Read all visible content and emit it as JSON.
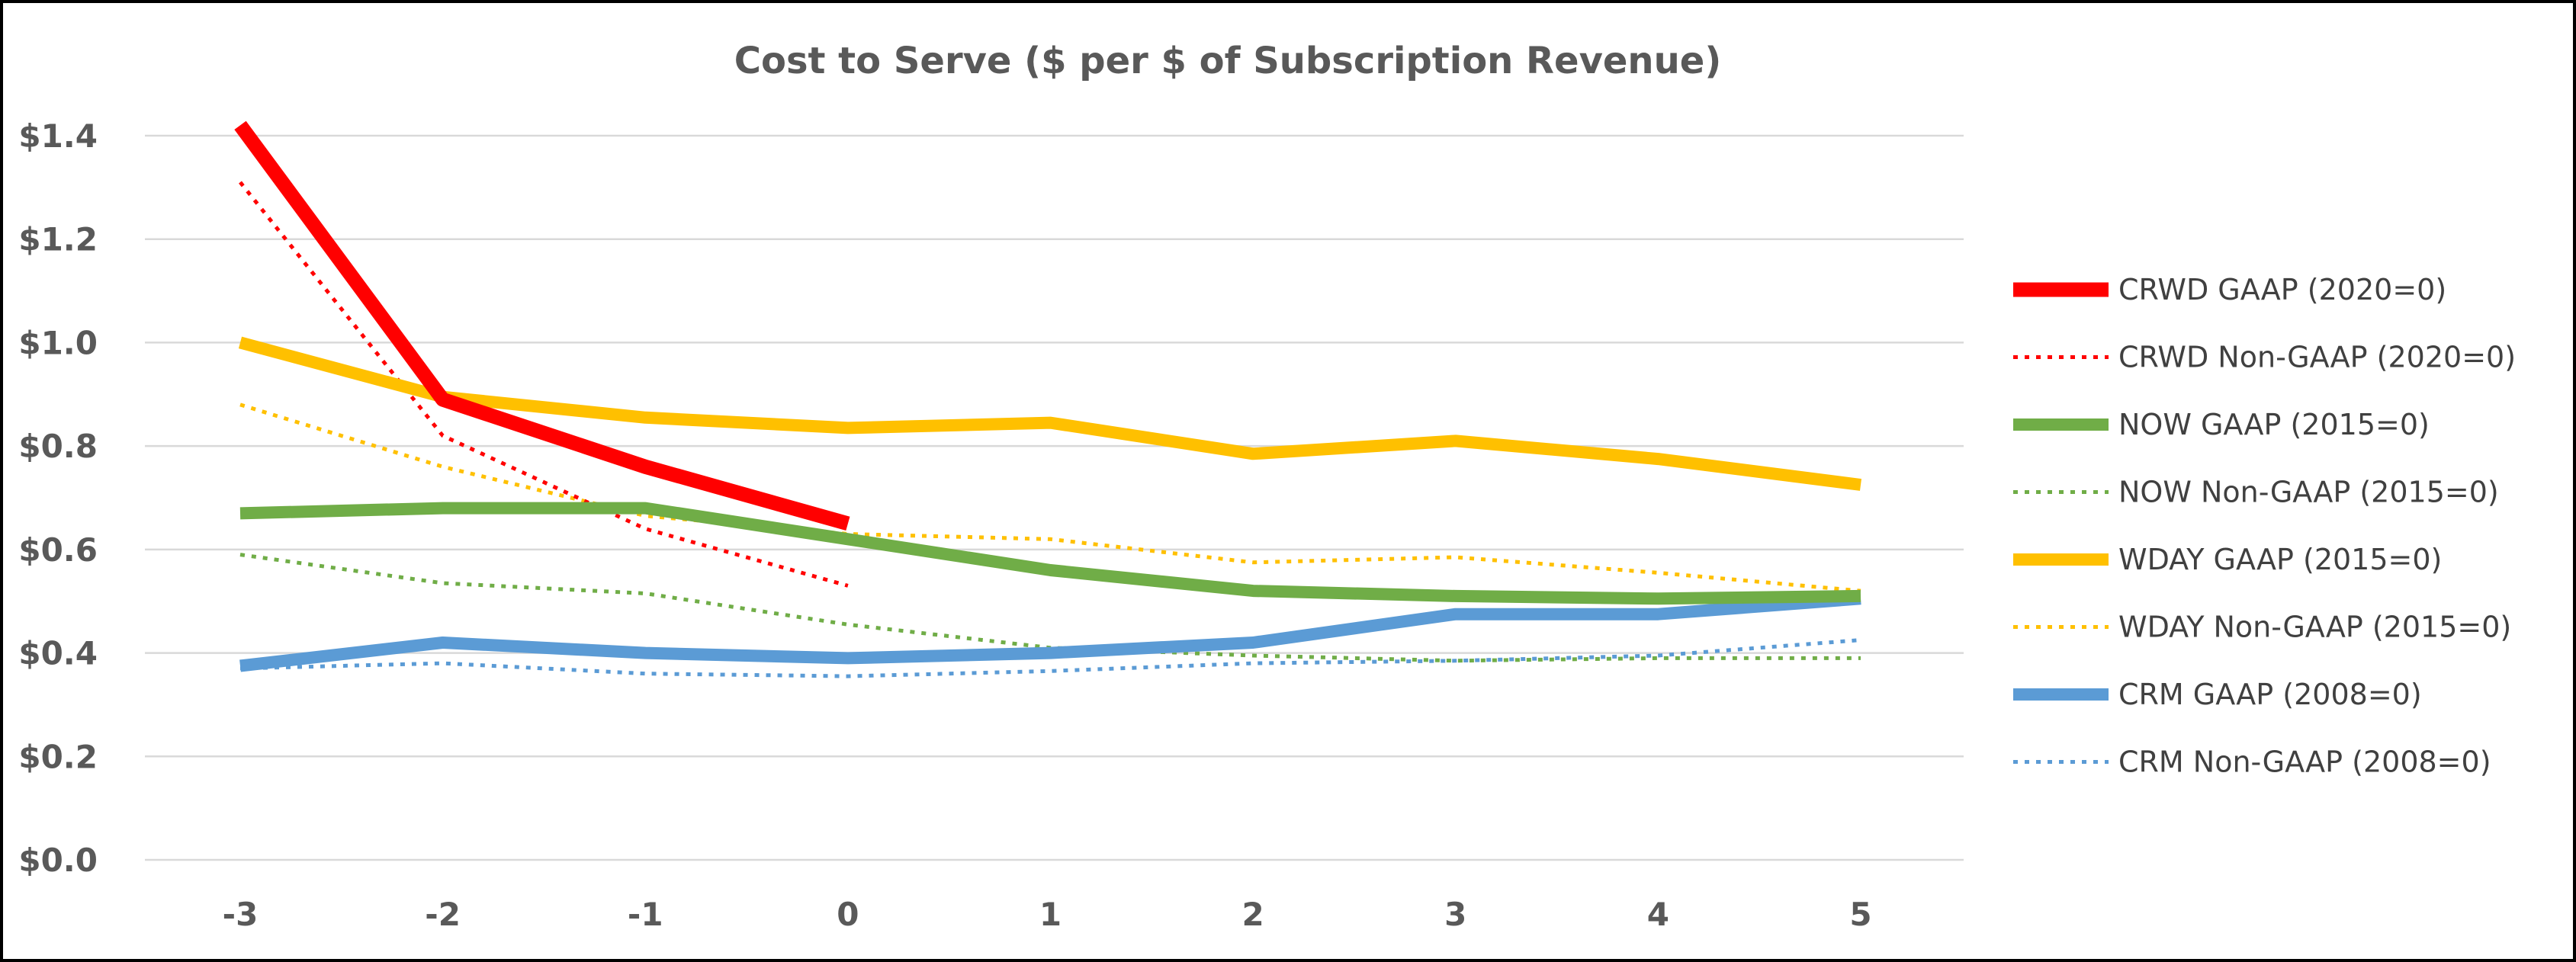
{
  "chart_data": {
    "type": "line",
    "title": "Cost to Serve ($ per $ of Subscription Revenue)",
    "xlabel": "",
    "ylabel": "",
    "x": [
      -3,
      -2,
      -1,
      0,
      1,
      2,
      3,
      4,
      5
    ],
    "x_tick_labels": [
      "-3",
      "-2",
      "-1",
      "0",
      "1",
      "2",
      "3",
      "4",
      "5"
    ],
    "ylim": [
      0,
      1.4
    ],
    "y_ticks": [
      0,
      0.2,
      0.4,
      0.6,
      0.8,
      1.0,
      1.2,
      1.4
    ],
    "y_tick_labels": [
      "$0.0",
      "$0.2",
      "$0.4",
      "$0.6",
      "$0.8",
      "$1.0",
      "$1.2",
      "$1.4"
    ],
    "grid": true,
    "legend_position": "right",
    "series": [
      {
        "name": "CRWD GAAP (2020=0)",
        "color": "#ff0000",
        "style": "solid",
        "weight": "heavy",
        "values": [
          1.42,
          0.89,
          0.76,
          0.65,
          null,
          null,
          null,
          null,
          null
        ]
      },
      {
        "name": "CRWD Non-GAAP (2020=0)",
        "color": "#ff0000",
        "style": "dotted",
        "weight": "light",
        "values": [
          1.31,
          0.82,
          0.64,
          0.53,
          null,
          null,
          null,
          null,
          null
        ]
      },
      {
        "name": "NOW GAAP (2015=0)",
        "color": "#70ad47",
        "style": "solid",
        "weight": "heavy",
        "values": [
          0.67,
          0.68,
          0.68,
          0.62,
          0.56,
          0.52,
          0.51,
          0.505,
          0.51
        ]
      },
      {
        "name": "NOW Non-GAAP (2015=0)",
        "color": "#70ad47",
        "style": "dotted",
        "weight": "light",
        "values": [
          0.59,
          0.535,
          0.515,
          0.455,
          0.41,
          0.395,
          0.385,
          0.39,
          0.39
        ]
      },
      {
        "name": "WDAY GAAP (2015=0)",
        "color": "#ffc000",
        "style": "solid",
        "weight": "heavy",
        "values": [
          1.0,
          0.895,
          0.855,
          0.835,
          0.845,
          0.785,
          0.81,
          0.775,
          0.725
        ]
      },
      {
        "name": "WDAY Non-GAAP (2015=0)",
        "color": "#ffc000",
        "style": "dotted",
        "weight": "light",
        "values": [
          0.88,
          0.76,
          0.665,
          0.63,
          0.62,
          0.575,
          0.585,
          0.555,
          0.52
        ]
      },
      {
        "name": "CRM GAAP (2008=0)",
        "color": "#5b9bd5",
        "style": "solid",
        "weight": "heavy",
        "values": [
          0.375,
          0.42,
          0.4,
          0.39,
          0.4,
          0.42,
          0.475,
          0.475,
          0.505
        ]
      },
      {
        "name": "CRM Non-GAAP (2008=0)",
        "color": "#5b9bd5",
        "style": "dotted",
        "weight": "light",
        "values": [
          0.37,
          0.38,
          0.36,
          0.355,
          0.365,
          0.38,
          0.385,
          0.395,
          0.425
        ]
      }
    ]
  }
}
